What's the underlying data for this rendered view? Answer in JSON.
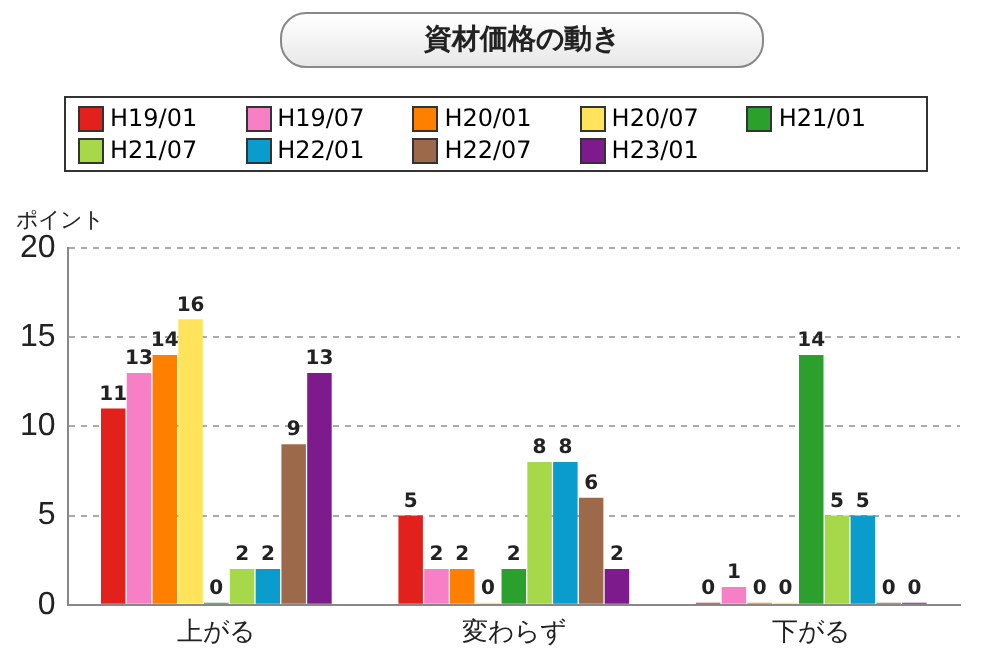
{
  "chart_data": {
    "type": "bar",
    "title": "資材価格の動き",
    "ylabel": "ポイント",
    "categories": [
      "上がる",
      "変わらず",
      "下がる"
    ],
    "series": [
      {
        "name": "H19/01",
        "color": "#e3211c",
        "values": [
          11,
          5,
          0
        ]
      },
      {
        "name": "H19/07",
        "color": "#f67fc6",
        "values": [
          13,
          2,
          1
        ]
      },
      {
        "name": "H20/01",
        "color": "#ff8000",
        "values": [
          14,
          2,
          0
        ]
      },
      {
        "name": "H20/07",
        "color": "#ffe35a",
        "values": [
          16,
          0,
          0
        ]
      },
      {
        "name": "H21/01",
        "color": "#2ca02c",
        "values": [
          0,
          2,
          14
        ]
      },
      {
        "name": "H21/07",
        "color": "#a6d84a",
        "values": [
          2,
          8,
          5
        ]
      },
      {
        "name": "H22/01",
        "color": "#0a9ccc",
        "values": [
          2,
          8,
          5
        ]
      },
      {
        "name": "H22/07",
        "color": "#9c6a4a",
        "values": [
          9,
          6,
          0
        ]
      },
      {
        "name": "H23/01",
        "color": "#7d1a8c",
        "values": [
          13,
          2,
          0
        ]
      }
    ],
    "ylim": [
      0,
      20
    ],
    "yticks": [
      0,
      5,
      10,
      15,
      20
    ],
    "grid": "y",
    "legend": "top",
    "data_labels": true
  }
}
